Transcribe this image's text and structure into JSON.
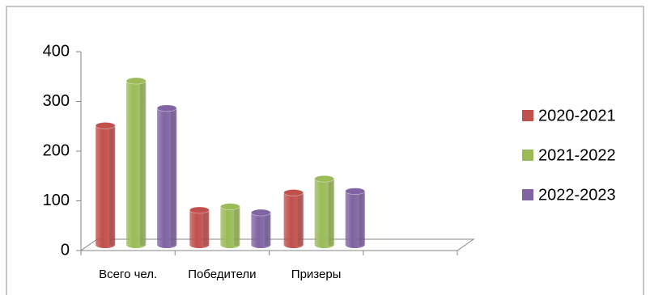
{
  "chart_data": {
    "type": "bar3d",
    "categories": [
      "Всего чел.",
      "Победители",
      "Призеры",
      null
    ],
    "series": [
      {
        "name": "2020-2021",
        "color": "#c0504d",
        "values": [
          240,
          70,
          105,
          null
        ]
      },
      {
        "name": "2021-2022",
        "color": "#9bbb59",
        "values": [
          330,
          77,
          133,
          null
        ]
      },
      {
        "name": "2022-2023",
        "color": "#8064a2",
        "values": [
          275,
          65,
          108,
          null
        ]
      }
    ],
    "ylim": [
      0,
      400
    ],
    "yticks": [
      0,
      100,
      200,
      300,
      400
    ],
    "legend": "right"
  }
}
